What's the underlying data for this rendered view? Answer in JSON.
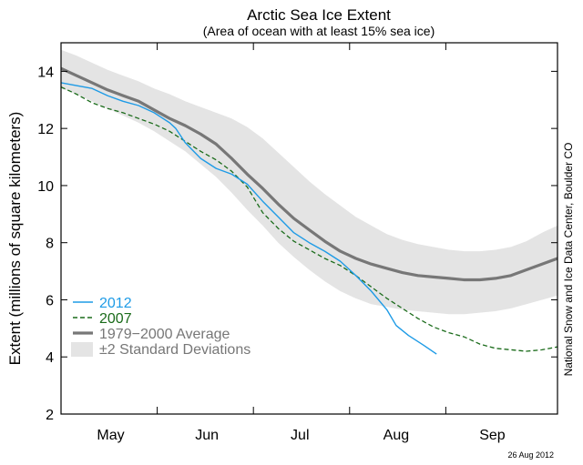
{
  "chart_data": {
    "type": "line",
    "title": "Arctic Sea Ice Extent",
    "subtitle": "(Area of ocean with at least 15% sea ice)",
    "ylabel": "Extent (millions of square kilometers)",
    "xlabel": "",
    "ylim": [
      2,
      15
    ],
    "xlim": [
      120,
      280
    ],
    "y_ticks": [
      2,
      4,
      6,
      8,
      10,
      12,
      14
    ],
    "x_ticks": [
      {
        "label": "May",
        "value": 136
      },
      {
        "label": "Jun",
        "value": 167
      },
      {
        "label": "Jul",
        "value": 197
      },
      {
        "label": "Aug",
        "value": 228
      },
      {
        "label": "Sep",
        "value": 259
      }
    ],
    "x_month_boundaries": [
      151,
      182,
      213,
      244
    ],
    "grid": false,
    "legend_position": "bottom-left",
    "series": [
      {
        "name": "2012",
        "color": "#1e9be6",
        "style": "solid",
        "points": [
          [
            120,
            13.6
          ],
          [
            125,
            13.5
          ],
          [
            130,
            13.4
          ],
          [
            135,
            13.15
          ],
          [
            140,
            12.95
          ],
          [
            145,
            12.8
          ],
          [
            150,
            12.55
          ],
          [
            155,
            12.2
          ],
          [
            157,
            12.0
          ],
          [
            160,
            11.5
          ],
          [
            165,
            10.95
          ],
          [
            170,
            10.6
          ],
          [
            175,
            10.4
          ],
          [
            180,
            10.05
          ],
          [
            185,
            9.45
          ],
          [
            190,
            8.9
          ],
          [
            195,
            8.35
          ],
          [
            200,
            8.0
          ],
          [
            205,
            7.7
          ],
          [
            210,
            7.35
          ],
          [
            215,
            6.85
          ],
          [
            220,
            6.3
          ],
          [
            225,
            5.65
          ],
          [
            228,
            5.1
          ],
          [
            232,
            4.75
          ],
          [
            237,
            4.4
          ],
          [
            241,
            4.1
          ]
        ]
      },
      {
        "name": "2007",
        "color": "#1a6b1a",
        "style": "dashed",
        "points": [
          [
            120,
            13.45
          ],
          [
            125,
            13.2
          ],
          [
            130,
            12.9
          ],
          [
            135,
            12.7
          ],
          [
            140,
            12.55
          ],
          [
            145,
            12.35
          ],
          [
            150,
            12.15
          ],
          [
            155,
            11.9
          ],
          [
            160,
            11.55
          ],
          [
            165,
            11.2
          ],
          [
            170,
            10.9
          ],
          [
            175,
            10.5
          ],
          [
            180,
            9.95
          ],
          [
            185,
            9.05
          ],
          [
            190,
            8.5
          ],
          [
            195,
            8.05
          ],
          [
            200,
            7.75
          ],
          [
            205,
            7.45
          ],
          [
            210,
            7.2
          ],
          [
            215,
            6.85
          ],
          [
            220,
            6.45
          ],
          [
            225,
            6.05
          ],
          [
            230,
            5.7
          ],
          [
            235,
            5.35
          ],
          [
            240,
            5.05
          ],
          [
            245,
            4.85
          ],
          [
            250,
            4.7
          ],
          [
            255,
            4.45
          ],
          [
            260,
            4.3
          ],
          [
            265,
            4.25
          ],
          [
            270,
            4.2
          ],
          [
            275,
            4.25
          ],
          [
            280,
            4.35
          ]
        ]
      },
      {
        "name": "1979−2000 Average",
        "color": "#777777",
        "style": "solid-thick",
        "points": [
          [
            120,
            14.1
          ],
          [
            125,
            13.85
          ],
          [
            130,
            13.6
          ],
          [
            135,
            13.35
          ],
          [
            140,
            13.15
          ],
          [
            145,
            12.95
          ],
          [
            150,
            12.65
          ],
          [
            155,
            12.35
          ],
          [
            160,
            12.1
          ],
          [
            165,
            11.8
          ],
          [
            170,
            11.45
          ],
          [
            175,
            10.95
          ],
          [
            180,
            10.4
          ],
          [
            185,
            9.9
          ],
          [
            190,
            9.35
          ],
          [
            195,
            8.85
          ],
          [
            200,
            8.45
          ],
          [
            205,
            8.05
          ],
          [
            210,
            7.7
          ],
          [
            215,
            7.45
          ],
          [
            220,
            7.25
          ],
          [
            225,
            7.1
          ],
          [
            230,
            6.95
          ],
          [
            235,
            6.85
          ],
          [
            240,
            6.8
          ],
          [
            245,
            6.75
          ],
          [
            250,
            6.7
          ],
          [
            255,
            6.7
          ],
          [
            260,
            6.75
          ],
          [
            265,
            6.85
          ],
          [
            270,
            7.05
          ],
          [
            275,
            7.25
          ],
          [
            280,
            7.45
          ]
        ]
      },
      {
        "name": "±2 Standard Deviations",
        "color": "#e4e4e4",
        "style": "band",
        "points_upper": [
          [
            120,
            14.75
          ],
          [
            125,
            14.55
          ],
          [
            130,
            14.3
          ],
          [
            135,
            14.05
          ],
          [
            140,
            13.85
          ],
          [
            145,
            13.65
          ],
          [
            150,
            13.4
          ],
          [
            155,
            13.2
          ],
          [
            160,
            12.95
          ],
          [
            165,
            12.75
          ],
          [
            170,
            12.55
          ],
          [
            175,
            12.35
          ],
          [
            180,
            12.05
          ],
          [
            185,
            11.65
          ],
          [
            190,
            11.15
          ],
          [
            195,
            10.65
          ],
          [
            200,
            10.15
          ],
          [
            205,
            9.7
          ],
          [
            210,
            9.3
          ],
          [
            215,
            8.9
          ],
          [
            220,
            8.6
          ],
          [
            225,
            8.3
          ],
          [
            230,
            8.1
          ],
          [
            235,
            7.95
          ],
          [
            240,
            7.85
          ],
          [
            245,
            7.75
          ],
          [
            250,
            7.7
          ],
          [
            255,
            7.7
          ],
          [
            260,
            7.75
          ],
          [
            265,
            7.85
          ],
          [
            270,
            8.05
          ],
          [
            275,
            8.35
          ],
          [
            280,
            8.6
          ]
        ],
        "points_lower": [
          [
            120,
            13.4
          ],
          [
            125,
            13.2
          ],
          [
            130,
            12.95
          ],
          [
            135,
            12.7
          ],
          [
            140,
            12.45
          ],
          [
            145,
            12.2
          ],
          [
            150,
            11.9
          ],
          [
            155,
            11.55
          ],
          [
            160,
            11.2
          ],
          [
            165,
            10.75
          ],
          [
            170,
            10.3
          ],
          [
            175,
            9.75
          ],
          [
            180,
            9.15
          ],
          [
            185,
            8.6
          ],
          [
            190,
            8.0
          ],
          [
            195,
            7.5
          ],
          [
            200,
            7.05
          ],
          [
            205,
            6.65
          ],
          [
            210,
            6.3
          ],
          [
            215,
            6.05
          ],
          [
            220,
            5.85
          ],
          [
            225,
            5.75
          ],
          [
            230,
            5.65
          ],
          [
            235,
            5.6
          ],
          [
            240,
            5.55
          ],
          [
            245,
            5.5
          ],
          [
            250,
            5.5
          ],
          [
            255,
            5.55
          ],
          [
            260,
            5.6
          ],
          [
            265,
            5.7
          ],
          [
            270,
            5.85
          ],
          [
            275,
            6.0
          ],
          [
            280,
            6.15
          ]
        ]
      }
    ],
    "legend": [
      {
        "label": "2012",
        "color": "#1e9be6",
        "symbol": "line"
      },
      {
        "label": "2007",
        "color": "#1a6b1a",
        "symbol": "dashed"
      },
      {
        "label": "1979−2000 Average",
        "color": "#777777",
        "symbol": "thick-line"
      },
      {
        "label": "±2 Standard Deviations",
        "color": "#777777",
        "swatch": "#e4e4e4",
        "symbol": "box"
      }
    ],
    "side_credit": "National Snow and Ice Data Center, Boulder CO",
    "date_stamp": "26 Aug 2012"
  }
}
